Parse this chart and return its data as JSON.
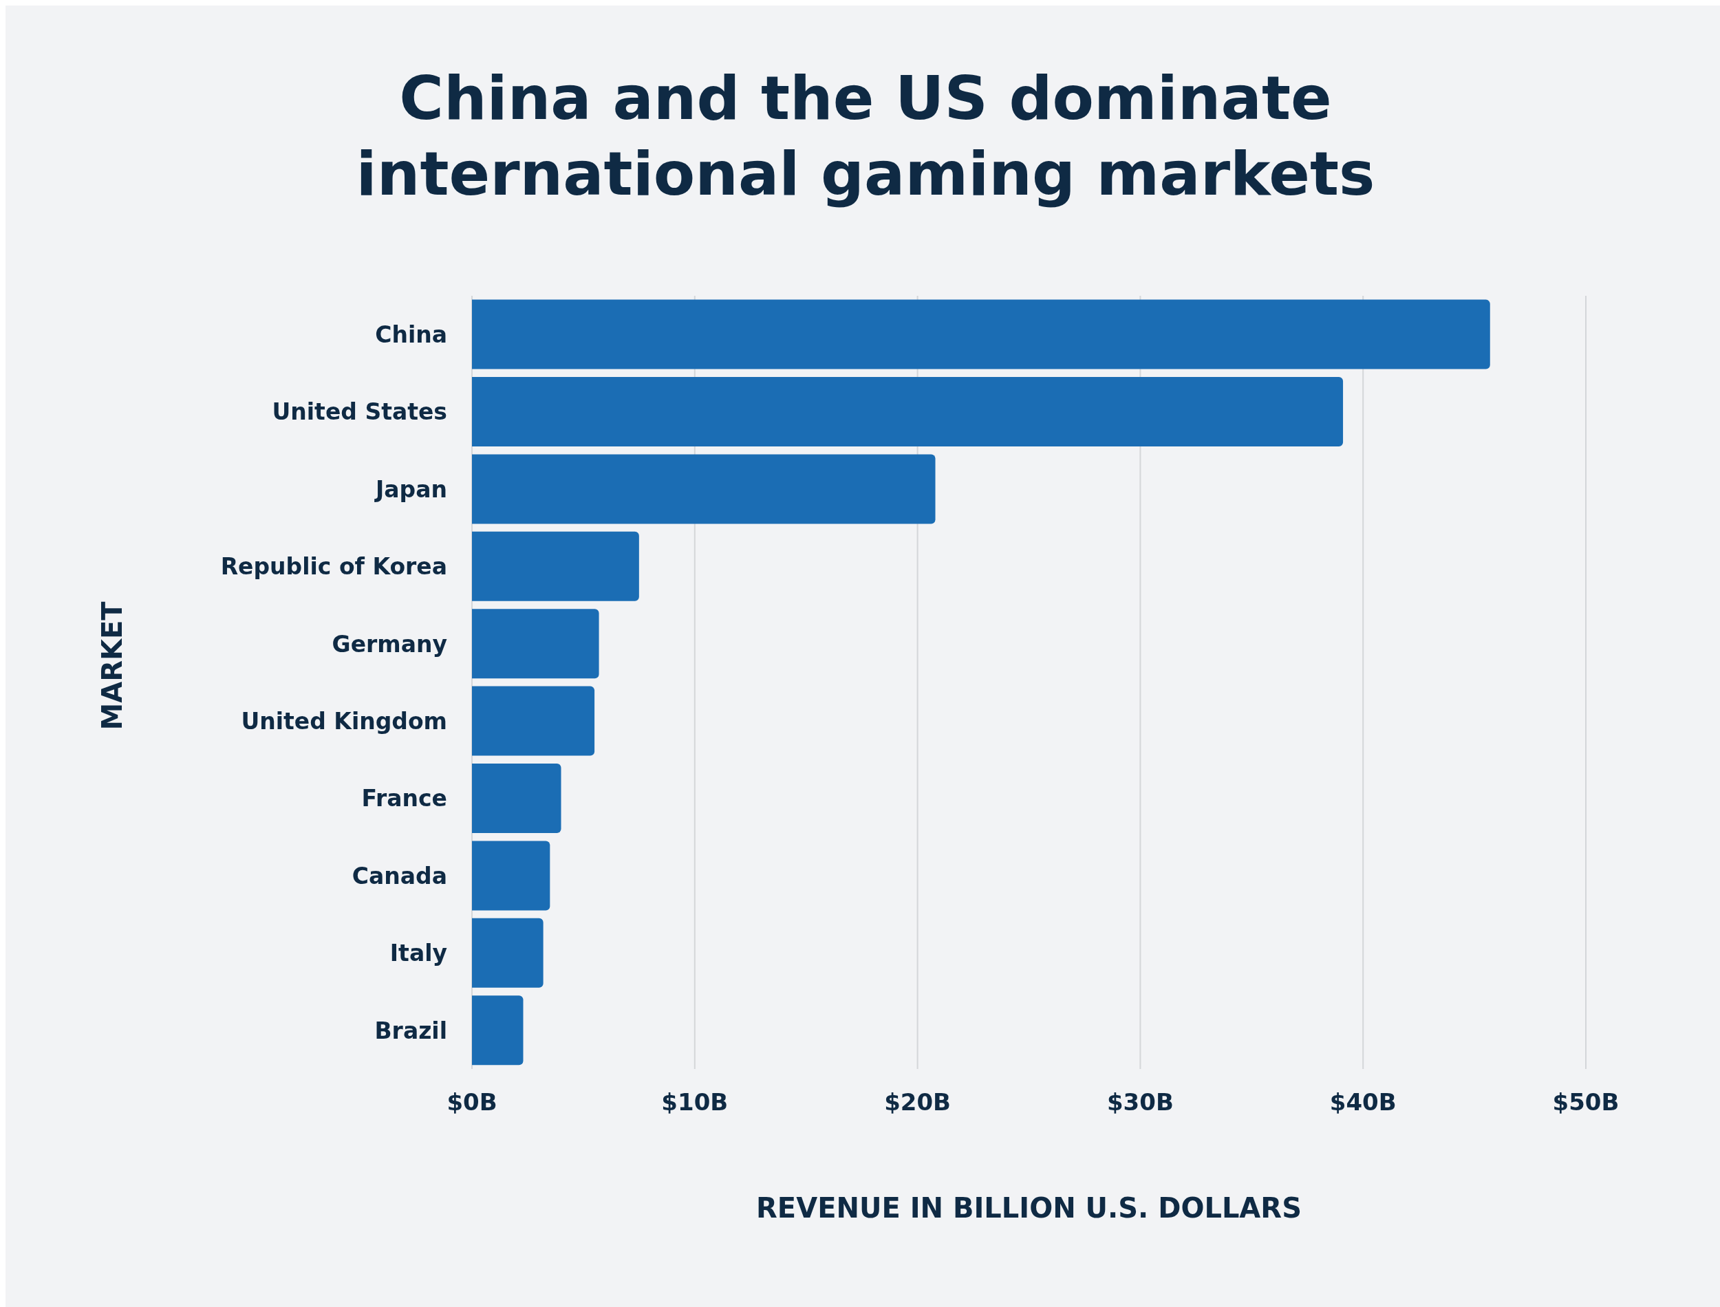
{
  "chart_data": {
    "type": "bar",
    "orientation": "horizontal",
    "title": "China and the US dominate international gaming markets",
    "xlabel": "REVENUE IN BILLION U.S. DOLLARS",
    "ylabel": "MARKET",
    "categories": [
      "China",
      "United States",
      "Japan",
      "Republic of Korea",
      "Germany",
      "United Kingdom",
      "France",
      "Canada",
      "Italy",
      "Brazil"
    ],
    "values": [
      45.7,
      39.1,
      20.8,
      7.5,
      5.7,
      5.5,
      4.0,
      3.5,
      3.2,
      2.3
    ],
    "color": "#1b6db4",
    "xlim": [
      0,
      50
    ],
    "xticks": [
      {
        "value": 0,
        "label": "$0B"
      },
      {
        "value": 10,
        "label": "$10B"
      },
      {
        "value": 20,
        "label": "$20B"
      },
      {
        "value": 30,
        "label": "$30B"
      },
      {
        "value": 40,
        "label": "$40B"
      },
      {
        "value": 50,
        "label": "$50B"
      }
    ],
    "grid": "x"
  }
}
